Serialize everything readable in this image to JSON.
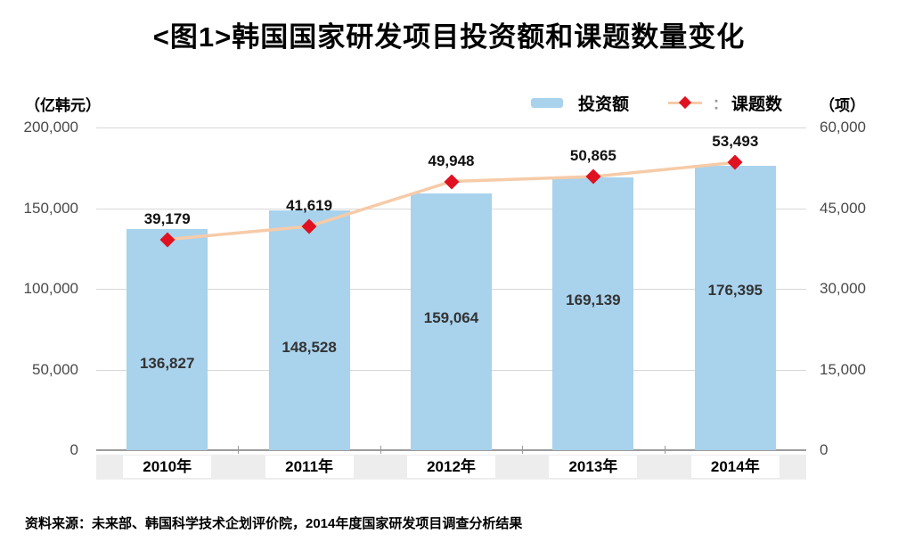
{
  "title": "<图1>韩国国家研发项目投资额和课题数量变化",
  "source_note": "资料来源：未来部、韩国科学技术企划评价院，2014年度国家研发项目调查分析结果",
  "legend": {
    "bar_label": "投资额",
    "separator": "：",
    "line_label": "课题数"
  },
  "colors": {
    "bar": "#A9D2EC",
    "line": "#F6CBA8",
    "marker": "#E01120",
    "grid": "#D8D8D8",
    "axis": "#9B9B9B",
    "band": "#EDEDED",
    "tick_text": "#4A4A4A"
  },
  "chart_data": {
    "type": "bar",
    "subtype": "combo-bar-line-dual-axis",
    "title": "<图1>韩国国家研发项目投资额和课题数量变化",
    "categories": [
      "2010年",
      "2011年",
      "2012年",
      "2013年",
      "2014年"
    ],
    "series": [
      {
        "name": "投资额",
        "type": "bar",
        "axis": "left",
        "unit": "亿韩元",
        "values": [
          136827,
          148528,
          159064,
          169139,
          176395
        ]
      },
      {
        "name": "课题数",
        "type": "line",
        "marker": "diamond",
        "axis": "right",
        "unit": "项",
        "values": [
          39179,
          41619,
          49948,
          50865,
          53493
        ]
      }
    ],
    "left_axis": {
      "label": "（亿韩元）",
      "min": 0,
      "max": 200000,
      "tick_step": 50000,
      "ticks": [
        200000,
        150000,
        100000,
        50000,
        0
      ]
    },
    "right_axis": {
      "label": "（项）",
      "min": 0,
      "max": 60000,
      "tick_step": 15000,
      "ticks": [
        60000,
        45000,
        30000,
        15000,
        0
      ]
    },
    "grid": true,
    "legend_position": "top-right",
    "data_labels": true
  }
}
